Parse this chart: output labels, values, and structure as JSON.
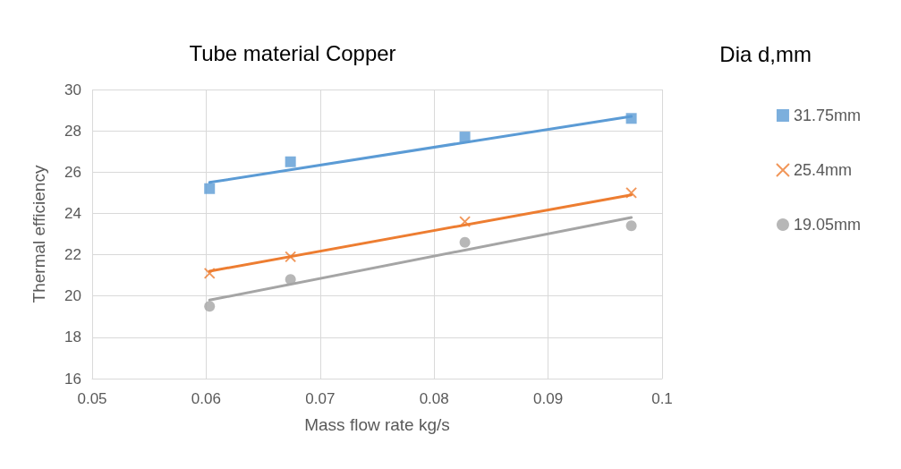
{
  "chart_data": {
    "type": "scatter",
    "title": "Tube material Copper",
    "xlabel": "Mass flow rate kg/s",
    "ylabel": "Thermal efficiency",
    "legend_title": "Dia d,mm",
    "x": [
      0.0603,
      0.0674,
      0.0827,
      0.0973
    ],
    "series": [
      {
        "name": "31.75mm",
        "color": "#5b9bd5",
        "marker": "square",
        "values": [
          25.2,
          26.5,
          27.7,
          28.6
        ]
      },
      {
        "name": "25.4mm",
        "color": "#ed7d31",
        "marker": "cross",
        "values": [
          21.1,
          21.9,
          23.6,
          25.0
        ]
      },
      {
        "name": "19.05mm",
        "color": "#a5a5a5",
        "marker": "circle",
        "values": [
          19.5,
          20.8,
          22.6,
          23.4
        ]
      },
      {
        "type": "line",
        "color": "#5b9bd5",
        "marker": "none",
        "values": [
          25.5,
          null,
          null,
          28.7
        ]
      },
      {
        "type": "line",
        "color": "#ed7d31",
        "marker": "none",
        "values": [
          21.2,
          null,
          null,
          24.9
        ]
      },
      {
        "type": "line",
        "color": "#a5a5a5",
        "marker": "none",
        "values": [
          19.8,
          null,
          null,
          23.8
        ]
      }
    ],
    "xlim": [
      0.05,
      0.1
    ],
    "xticks": [
      0.05,
      0.06,
      0.07,
      0.08,
      0.09,
      0.1
    ],
    "ylim": [
      16,
      30
    ],
    "yticks": [
      16,
      18,
      20,
      22,
      24,
      26,
      28,
      30
    ],
    "grid": true,
    "legend": "right"
  }
}
